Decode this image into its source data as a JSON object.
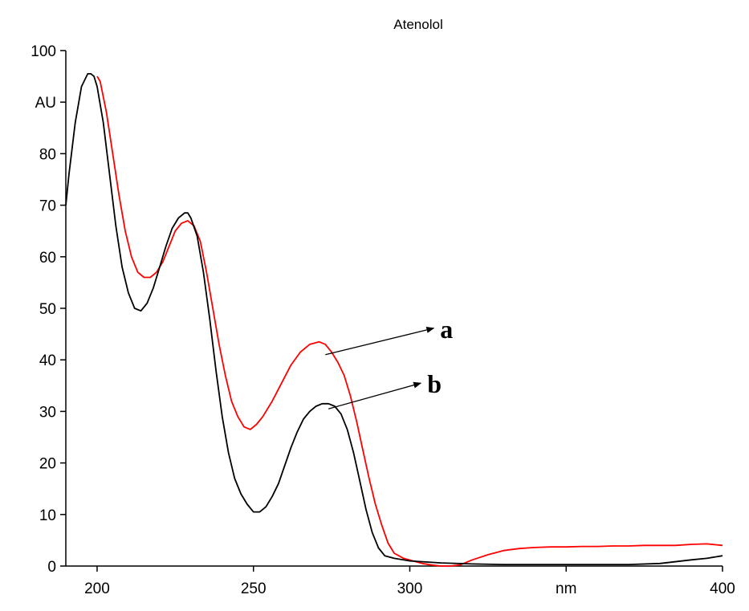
{
  "chart_data": {
    "type": "line",
    "title": "Atenolol",
    "ylabel": "AU",
    "xlabel": "nm",
    "xlim": [
      190,
      400
    ],
    "ylim": [
      0,
      100
    ],
    "grid": false,
    "x_ticks": [
      {
        "value": 200,
        "label": "200"
      },
      {
        "value": 250,
        "label": "250"
      },
      {
        "value": 300,
        "label": "300"
      },
      {
        "value": 350,
        "label": "nm"
      },
      {
        "value": 400,
        "label": "400"
      }
    ],
    "y_ticks": [
      {
        "value": 100,
        "label": "100"
      },
      {
        "value": 90,
        "label": "AU"
      },
      {
        "value": 80,
        "label": "80"
      },
      {
        "value": 70,
        "label": "70"
      },
      {
        "value": 60,
        "label": "60"
      },
      {
        "value": 50,
        "label": "50"
      },
      {
        "value": 40,
        "label": "40"
      },
      {
        "value": 30,
        "label": "30"
      },
      {
        "value": 20,
        "label": "20"
      },
      {
        "value": 10,
        "label": "10"
      },
      {
        "value": 0,
        "label": "0"
      }
    ],
    "series": [
      {
        "color": "#ff0000",
        "annotation": "a",
        "annotation_point": [
          273,
          41
        ],
        "x": [
          200,
          201,
          203,
          205,
          207,
          209,
          211,
          213,
          215,
          217,
          219,
          221,
          223,
          225,
          227,
          229,
          231,
          233,
          235,
          237,
          239,
          241,
          243,
          245,
          247,
          249,
          251,
          253,
          256,
          259,
          262,
          265,
          268,
          271,
          273,
          275,
          277,
          279,
          281,
          283,
          285,
          287,
          289,
          291,
          293,
          295,
          298,
          301,
          304,
          307,
          310,
          313,
          316,
          320,
          325,
          330,
          335,
          340,
          345,
          350,
          355,
          360,
          365,
          370,
          375,
          380,
          385,
          390,
          395,
          400
        ],
        "y": [
          95,
          94,
          88,
          80,
          72,
          65,
          60,
          57,
          56,
          56,
          57,
          59,
          62,
          65,
          66.5,
          67,
          66,
          63,
          57,
          50,
          43,
          37,
          32,
          29,
          27,
          26.5,
          27.5,
          29,
          32,
          35.5,
          39,
          41.5,
          43,
          43.5,
          43,
          41.5,
          39.5,
          37,
          33,
          28,
          22.5,
          17,
          12,
          8,
          4.5,
          2.5,
          1.5,
          1,
          0.5,
          0.2,
          0,
          0,
          0.2,
          1.2,
          2.2,
          3,
          3.4,
          3.6,
          3.7,
          3.7,
          3.8,
          3.8,
          3.9,
          3.9,
          4,
          4,
          4,
          4.2,
          4.3,
          4
        ]
      },
      {
        "color": "#000000",
        "annotation": "b",
        "annotation_point": [
          274,
          30.5
        ],
        "x": [
          190,
          191,
          193,
          195,
          197,
          198,
          199,
          200,
          202,
          204,
          206,
          208,
          210,
          212,
          214,
          216,
          218,
          220,
          222,
          224,
          226,
          228,
          229,
          230,
          232,
          234,
          236,
          238,
          240,
          242,
          244,
          246,
          248,
          250,
          252,
          254,
          256,
          258,
          260,
          262,
          264,
          266,
          268,
          270,
          272,
          274,
          276,
          278,
          280,
          282,
          284,
          286,
          288,
          290,
          292,
          295,
          300,
          310,
          320,
          330,
          340,
          350,
          360,
          370,
          380,
          390,
          395,
          400
        ],
        "y": [
          70,
          76,
          86,
          93,
          95.5,
          95.5,
          95,
          93,
          86,
          76,
          66,
          58,
          53,
          50,
          49.5,
          51,
          54,
          58,
          62,
          65.5,
          67.5,
          68.5,
          68.5,
          67.5,
          64,
          57,
          48,
          38,
          29,
          22,
          17,
          14,
          12,
          10.5,
          10.5,
          11.5,
          13.5,
          16,
          19.5,
          23,
          26,
          28.5,
          30,
          31,
          31.5,
          31.5,
          31,
          29.5,
          26.5,
          22,
          16.5,
          11,
          6.5,
          3.5,
          2,
          1.5,
          1,
          0.6,
          0.4,
          0.3,
          0.3,
          0.3,
          0.3,
          0.3,
          0.5,
          1.2,
          1.5,
          2
        ]
      }
    ]
  }
}
